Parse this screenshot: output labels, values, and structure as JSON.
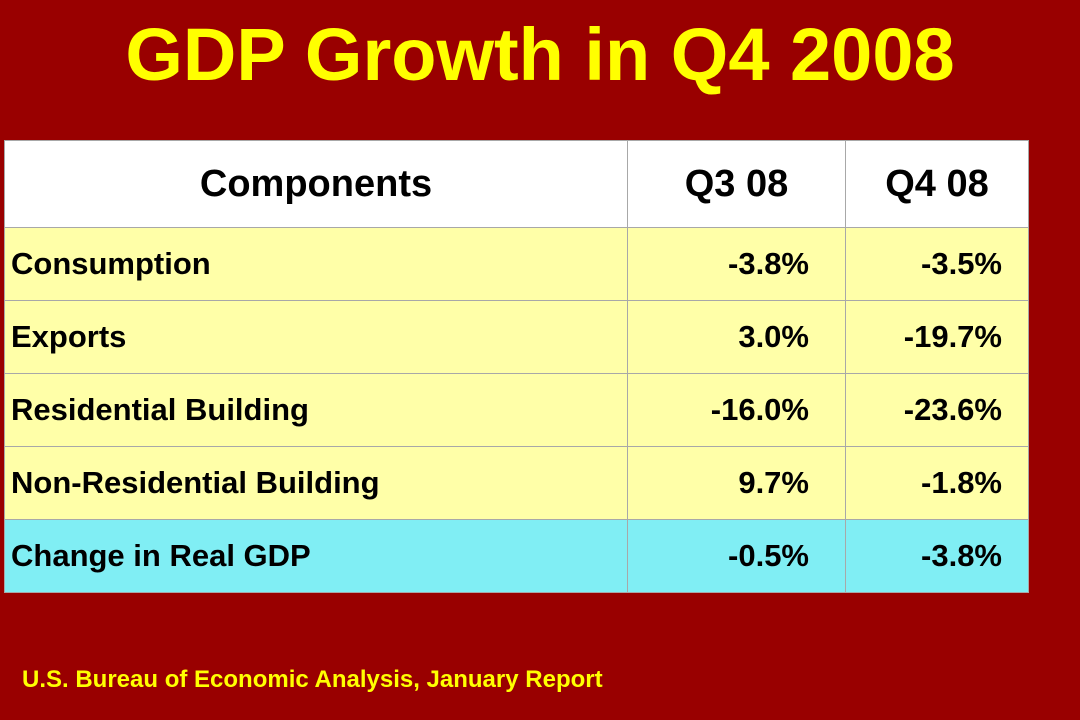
{
  "title": "GDP Growth in Q4 2008",
  "table": {
    "headers": [
      "Components",
      "Q3 08",
      "Q4 08"
    ],
    "rows": [
      {
        "component": "Consumption",
        "q3": "-3.8%",
        "q4": "-3.5%"
      },
      {
        "component": "Exports",
        "q3": "3.0%",
        "q4": "-19.7%"
      },
      {
        "component": "Residential Building",
        "q3": "-16.0%",
        "q4": "-23.6%"
      },
      {
        "component": "Non-Residential Building",
        "q3": "9.7%",
        "q4": "-1.8%"
      },
      {
        "component": "Change in Real GDP",
        "q3": "-0.5%",
        "q4": "-3.8%"
      }
    ]
  },
  "source": "U.S. Bureau of Economic Analysis, January Report",
  "colors": {
    "background": "#990000",
    "title_text": "#ffff00",
    "header_bg": "#ffffff",
    "row_bg": "#ffffa8",
    "total_row_bg": "#80eef4"
  }
}
